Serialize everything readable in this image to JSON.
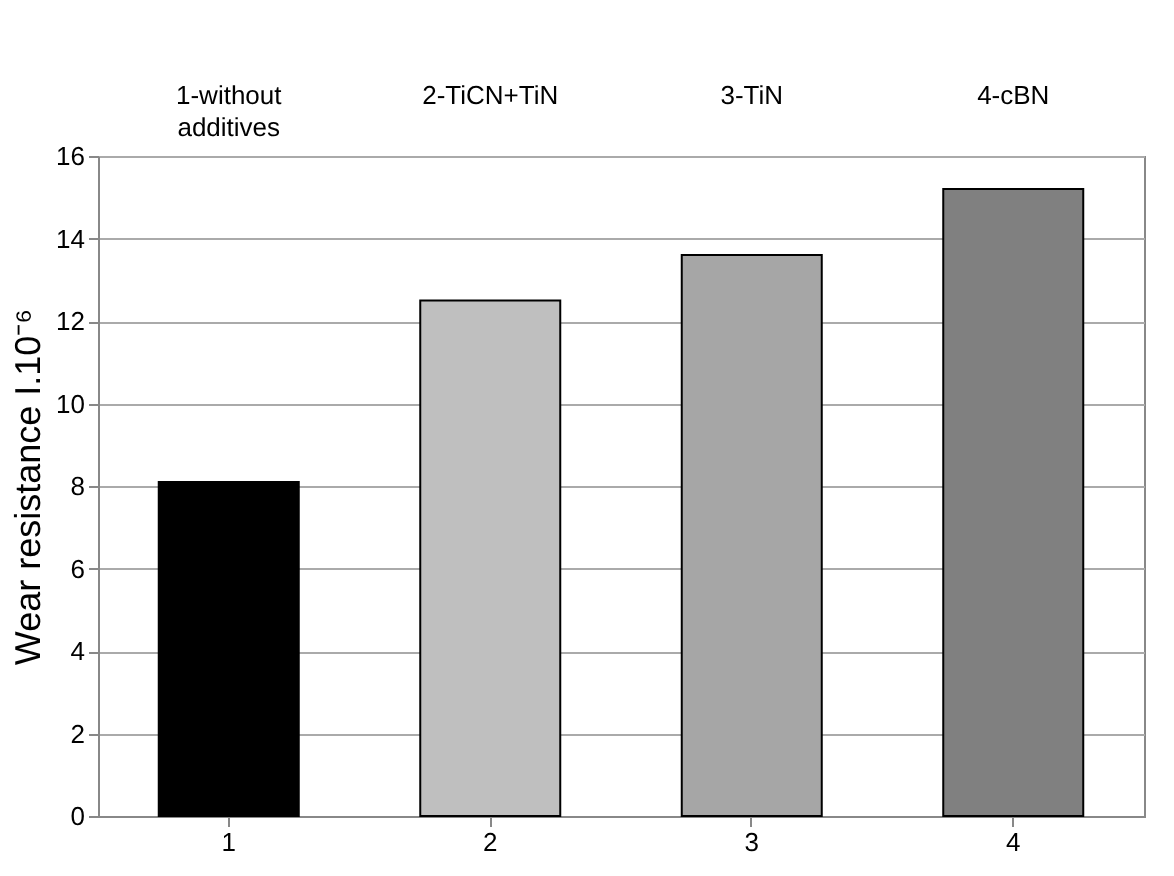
{
  "chart_data": {
    "type": "bar",
    "ylabel": "Wear resistance I.10⁻⁶",
    "categories": [
      "1",
      "2",
      "3",
      "4"
    ],
    "values": [
      8.1,
      12.5,
      13.6,
      15.2
    ],
    "colors": [
      "#000000",
      "#bfbfbf",
      "#a6a6a6",
      "#808080"
    ],
    "ylim": [
      0,
      16
    ],
    "yticks": [
      0,
      2,
      4,
      6,
      8,
      10,
      12,
      14,
      16
    ],
    "grid": "y",
    "annotations": [
      "1-without\nadditives",
      "2-TiCN+TiN",
      "3-TiN",
      "4-cBN"
    ]
  }
}
